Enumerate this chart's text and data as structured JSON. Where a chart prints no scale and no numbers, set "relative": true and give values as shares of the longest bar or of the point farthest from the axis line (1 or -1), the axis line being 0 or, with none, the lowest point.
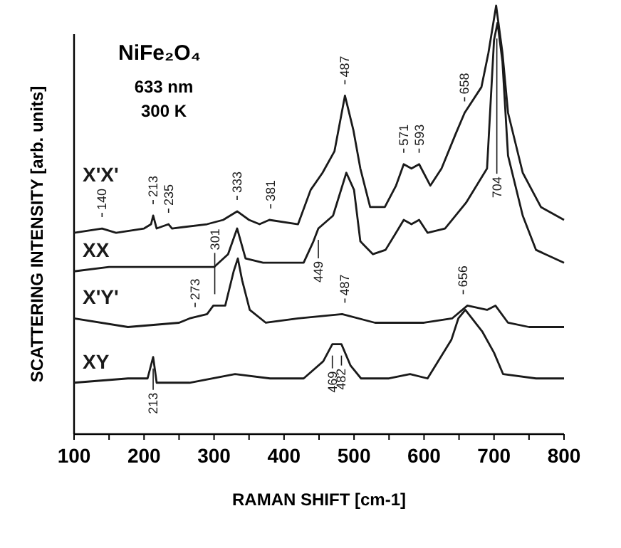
{
  "chart_data": {
    "type": "line",
    "relative": true,
    "xlabel": "RAMAN SHIFT [cm-1]",
    "ylabel": "SCATTERING INTENSITY [arb. units]",
    "xlim": [
      100,
      800
    ],
    "xticks": [
      100,
      {
        "value": 150,
        "label": null
      },
      200,
      {
        "value": 250,
        "label": null
      },
      300,
      {
        "value": 350,
        "label": null
      },
      400,
      {
        "value": 450,
        "label": null
      },
      500,
      {
        "value": 550,
        "label": null
      },
      600,
      {
        "value": 650,
        "label": null
      },
      700,
      {
        "value": 750,
        "label": null
      },
      800
    ],
    "grid": false,
    "line_style": "solid",
    "annotations": [
      "NiFe₂O₄",
      "633 nm",
      "300 K",
      {
        "text": "140",
        "x": 140,
        "y": 0.49
      },
      {
        "text": "213",
        "x": 213,
        "y": 0.52
      },
      {
        "text": "235",
        "x": 235,
        "y": 0.5
      },
      {
        "text": "333",
        "x": 333,
        "y": 0.53
      },
      {
        "text": "381",
        "x": 381,
        "y": 0.51
      },
      {
        "text": "487",
        "x": 487,
        "y": 0.8
      },
      {
        "text": "571",
        "x": 571,
        "y": 0.64
      },
      {
        "text": "593",
        "x": 593,
        "y": 0.64
      },
      {
        "text": "658",
        "x": 658,
        "y": 0.76
      },
      {
        "text": "704",
        "x": 704,
        "y": 0.94
      },
      {
        "text": "449",
        "x": 449,
        "y": 0.47
      },
      {
        "text": "273",
        "x": 273,
        "y": 0.28
      },
      {
        "text": "301",
        "x": 301,
        "y": 0.31
      },
      {
        "text": "487",
        "x": 487,
        "y": 0.29
      },
      {
        "text": "656",
        "x": 656,
        "y": 0.31
      },
      {
        "text": "213",
        "x": 213,
        "y": 0.17
      },
      {
        "text": "469",
        "x": 469,
        "y": 0.2
      },
      {
        "text": "482",
        "x": 482,
        "y": 0.2
      }
    ],
    "series": [
      {
        "name": "X'X'",
        "color": "#1a1a1a",
        "x": [
          100,
          140,
          160,
          200,
          210,
          213,
          218,
          235,
          240,
          290,
          313,
          333,
          350,
          365,
          379,
          420,
          438,
          455,
          472,
          487,
          499,
          509,
          523,
          544,
          560,
          571,
          582,
          593,
          609,
          625,
          645,
          658,
          682,
          692,
          703,
          712,
          720,
          741,
          767,
          800
        ],
        "values": [
          0.47,
          0.48,
          0.47,
          0.48,
          0.49,
          0.51,
          0.48,
          0.49,
          0.48,
          0.49,
          0.5,
          0.52,
          0.5,
          0.49,
          0.5,
          0.49,
          0.57,
          0.61,
          0.66,
          0.79,
          0.71,
          0.62,
          0.53,
          0.53,
          0.58,
          0.63,
          0.62,
          0.63,
          0.58,
          0.62,
          0.7,
          0.75,
          0.81,
          0.89,
          1,
          0.89,
          0.75,
          0.61,
          0.53,
          0.5
        ]
      },
      {
        "name": "XX",
        "color": "#1a1a1a",
        "x": [
          100,
          150,
          200,
          250,
          300,
          320,
          333,
          345,
          370,
          428,
          442,
          449,
          470,
          489,
          500,
          509,
          527,
          545,
          560,
          571,
          582,
          593,
          605,
          630,
          660,
          690,
          700,
          705,
          712,
          720,
          741,
          760,
          800
        ],
        "values": [
          0.38,
          0.39,
          0.39,
          0.39,
          0.39,
          0.42,
          0.48,
          0.41,
          0.4,
          0.4,
          0.45,
          0.48,
          0.51,
          0.61,
          0.57,
          0.45,
          0.42,
          0.43,
          0.47,
          0.5,
          0.49,
          0.5,
          0.47,
          0.48,
          0.54,
          0.62,
          0.92,
          0.96,
          0.87,
          0.65,
          0.51,
          0.43,
          0.4
        ]
      },
      {
        "name": "X'Y'",
        "color": "#1a1a1a",
        "x": [
          100,
          177,
          250,
          265,
          290,
          299,
          316,
          328,
          334,
          340,
          351,
          374,
          420,
          483,
          530,
          600,
          640,
          662,
          690,
          702,
          720,
          750,
          800
        ],
        "values": [
          0.27,
          0.25,
          0.26,
          0.27,
          0.28,
          0.3,
          0.3,
          0.38,
          0.41,
          0.36,
          0.29,
          0.26,
          0.27,
          0.28,
          0.26,
          0.26,
          0.27,
          0.3,
          0.29,
          0.3,
          0.26,
          0.25,
          0.25
        ]
      },
      {
        "name": "XY",
        "color": "#1a1a1a",
        "x": [
          100,
          177,
          205,
          213,
          218,
          265,
          330,
          380,
          428,
          456,
          469,
          482,
          495,
          510,
          550,
          580,
          605,
          639,
          649,
          659,
          683,
          700,
          713,
          760,
          800
        ],
        "values": [
          0.12,
          0.13,
          0.13,
          0.18,
          0.12,
          0.12,
          0.14,
          0.13,
          0.13,
          0.17,
          0.21,
          0.21,
          0.16,
          0.13,
          0.13,
          0.14,
          0.13,
          0.22,
          0.27,
          0.29,
          0.24,
          0.19,
          0.14,
          0.13,
          0.13
        ]
      }
    ]
  }
}
